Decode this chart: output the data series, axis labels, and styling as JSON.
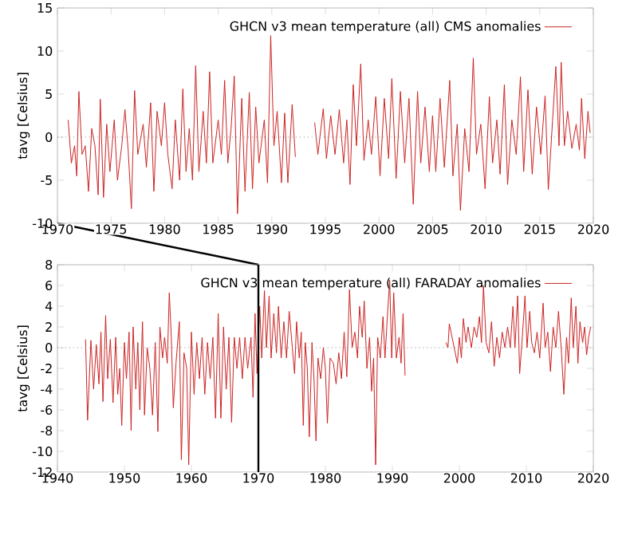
{
  "chart_data": [
    {
      "type": "line",
      "ylabel": "tavg [Celsius]",
      "legend": "top right",
      "xlim": [
        1970,
        2020
      ],
      "ylim": [
        -10,
        15
      ],
      "xticks": [
        1970,
        1975,
        1980,
        1985,
        1990,
        1995,
        2000,
        2005,
        2010,
        2015,
        2020
      ],
      "yticks": [
        -10,
        -5,
        0,
        5,
        10,
        15
      ],
      "ref_lines": [
        {
          "axis": "y",
          "value": 0,
          "color": "#888888",
          "line_style": "dotted"
        }
      ],
      "x": [
        1971.0,
        1971.3,
        1971.6,
        1971.8,
        1972.0,
        1972.3,
        1972.6,
        1972.9,
        1973.2,
        1973.5,
        1973.8,
        1974.0,
        1974.3,
        1974.6,
        1974.9,
        1975.3,
        1975.6,
        1976.0,
        1976.3,
        1976.6,
        1976.9,
        1977.2,
        1977.5,
        1978.0,
        1978.3,
        1978.7,
        1979.0,
        1979.3,
        1979.7,
        1980.0,
        1980.3,
        1980.7,
        1981.0,
        1981.4,
        1981.7,
        1982.0,
        1982.3,
        1982.6,
        1982.9,
        1983.2,
        1983.6,
        1983.9,
        1984.2,
        1984.5,
        1985.0,
        1985.3,
        1985.6,
        1985.9,
        1986.2,
        1986.5,
        1986.8,
        1987.2,
        1987.5,
        1987.9,
        1988.2,
        1988.5,
        1988.8,
        1989.3,
        1989.6,
        1989.9,
        1990.2,
        1990.5,
        1990.9,
        1991.2,
        1991.5,
        1991.9,
        1992.2,
        1993.0,
        1994.0,
        1994.3,
        1994.8,
        1995.1,
        1995.5,
        1995.9,
        1996.3,
        1996.7,
        1997.0,
        1997.3,
        1997.6,
        1997.9,
        1998.3,
        1998.6,
        1999.0,
        1999.3,
        1999.7,
        2000.1,
        2000.5,
        2000.9,
        2001.2,
        2001.6,
        2002.0,
        2002.4,
        2002.8,
        2003.2,
        2003.6,
        2003.9,
        2004.3,
        2004.7,
        2005.0,
        2005.3,
        2005.7,
        2006.1,
        2006.6,
        2006.9,
        2007.3,
        2007.6,
        2008.0,
        2008.4,
        2008.8,
        2009.1,
        2009.5,
        2009.9,
        2010.3,
        2010.6,
        2011.0,
        2011.3,
        2011.7,
        2012.0,
        2012.4,
        2012.8,
        2013.2,
        2013.5,
        2013.9,
        2014.3,
        2014.7,
        2015.1,
        2015.5,
        2015.8,
        2016.2,
        2016.5,
        2016.8,
        2017.0,
        2017.3,
        2017.6,
        2018.0,
        2018.4,
        2018.7,
        2018.9,
        2019.2,
        2019.5,
        2019.7
      ],
      "series": [
        {
          "name": "GHCN v3 mean temperature (all) CMS anomalies",
          "color": "#cc2222",
          "values": [
            2,
            -3,
            -1,
            -4.5,
            5.3,
            -2,
            -1,
            -6.3,
            1,
            -1,
            -6.7,
            4.4,
            -7,
            1.5,
            -4,
            2,
            -5,
            -1,
            3.2,
            -1.5,
            -8.3,
            5.4,
            -2,
            1.5,
            -3.5,
            4,
            -6.3,
            3,
            -1,
            4,
            -2,
            -6,
            2,
            -5,
            5.6,
            -4,
            1,
            -5,
            8.3,
            -4,
            3,
            -3,
            7.6,
            -3,
            2,
            -2,
            6.6,
            -3,
            1,
            7.1,
            -8.9,
            4.5,
            -6.3,
            5.2,
            -6,
            3.5,
            -3,
            2,
            -5.3,
            11.8,
            -1,
            3,
            -5.3,
            2.8,
            -5.3,
            3.8,
            -2.3,
            null,
            1.7,
            -2,
            3.3,
            -2.5,
            2.5,
            -2,
            3.2,
            -3,
            2,
            -5.5,
            6.1,
            -1,
            8.5,
            -2.7,
            2,
            -2,
            4.7,
            -4.5,
            4.5,
            -2.5,
            6.8,
            -4.8,
            5.3,
            -3,
            4.5,
            -7.8,
            5.3,
            -3,
            3.5,
            -4,
            2.5,
            -4,
            4.5,
            -3.5,
            6.6,
            -4.5,
            1.5,
            -8.5,
            1,
            -4,
            9.2,
            -2,
            1.5,
            -6,
            4.7,
            -3,
            2,
            -4.3,
            6.1,
            -5.5,
            2,
            -2,
            7,
            -4,
            5.5,
            -4.3,
            3.5,
            -2,
            4.8,
            -6.1,
            2,
            8.2,
            -1,
            8.7,
            -1,
            3,
            -1.3,
            1.5,
            -1.5,
            4.5,
            -2.5,
            3,
            0.5
          ]
        }
      ]
    },
    {
      "type": "line",
      "ylabel": "tavg [Celsius]",
      "legend": "top right",
      "xlim": [
        1940,
        2020
      ],
      "ylim": [
        -12,
        8
      ],
      "xticks": [
        1940,
        1950,
        1960,
        1970,
        1980,
        1990,
        2000,
        2010,
        2020
      ],
      "yticks": [
        -12,
        -10,
        -8,
        -6,
        -4,
        -2,
        0,
        2,
        4,
        6,
        8
      ],
      "ref_lines": [
        {
          "axis": "y",
          "value": 0,
          "color": "#888888",
          "line_style": "dotted"
        },
        {
          "axis": "x",
          "value": 1970,
          "color": "#000000",
          "line_style": "solid"
        }
      ],
      "x": [
        1944.2,
        1944.5,
        1945.0,
        1945.4,
        1945.8,
        1946.2,
        1946.5,
        1946.8,
        1947.2,
        1947.5,
        1947.9,
        1948.3,
        1948.7,
        1949.0,
        1949.3,
        1949.6,
        1950.0,
        1950.3,
        1950.7,
        1951.0,
        1951.3,
        1951.7,
        1952.0,
        1952.3,
        1952.7,
        1953.0,
        1953.4,
        1953.8,
        1954.2,
        1954.6,
        1955.0,
        1955.3,
        1955.7,
        1956.0,
        1956.4,
        1956.7,
        1957.0,
        1957.3,
        1957.7,
        1958.2,
        1958.5,
        1958.9,
        1959.3,
        1959.6,
        1960.0,
        1960.4,
        1960.8,
        1961.2,
        1961.6,
        1962.0,
        1962.4,
        1962.8,
        1963.2,
        1963.6,
        1964.0,
        1964.4,
        1964.8,
        1965.2,
        1965.6,
        1966.0,
        1966.4,
        1966.8,
        1967.2,
        1967.6,
        1968.0,
        1968.4,
        1968.9,
        1969.2,
        1969.5,
        1969.8,
        1970.2,
        1970.5,
        1970.9,
        1971.2,
        1971.6,
        1971.9,
        1972.3,
        1972.7,
        1973.0,
        1973.4,
        1973.8,
        1974.2,
        1974.6,
        1975.0,
        1975.4,
        1975.7,
        1976.1,
        1976.4,
        1976.7,
        1977.0,
        1977.3,
        1977.6,
        1978.0,
        1978.3,
        1978.6,
        1978.9,
        1979.3,
        1979.7,
        1980.0,
        1980.3,
        1980.7,
        1981.2,
        1981.6,
        1982.0,
        1982.4,
        1982.8,
        1983.2,
        1983.6,
        1984.0,
        1984.4,
        1984.8,
        1985.1,
        1985.5,
        1985.8,
        1986.2,
        1986.6,
        1986.9,
        1987.2,
        1987.5,
        1987.8,
        1988.2,
        1988.6,
        1988.9,
        1989.3,
        1989.6,
        1989.9,
        1990.2,
        1990.6,
        1991.0,
        1991.3,
        1991.6,
        1991.9,
        1995.0,
        1998.0,
        1998.3,
        1998.5,
        1999.7,
        2000.0,
        2000.3,
        2000.6,
        2001.0,
        2001.3,
        2001.8,
        2002.2,
        2002.6,
        2003.0,
        2003.3,
        2003.6,
        2004.0,
        2004.4,
        2004.8,
        2005.2,
        2005.6,
        2006.0,
        2006.4,
        2006.8,
        2007.2,
        2007.6,
        2008.0,
        2008.3,
        2008.7,
        2009.0,
        2009.4,
        2009.8,
        2010.1,
        2010.5,
        2010.8,
        2011.2,
        2011.6,
        2012.0,
        2012.5,
        2012.8,
        2013.2,
        2013.6,
        2014.0,
        2014.4,
        2014.8,
        2015.2,
        2015.6,
        2016.0,
        2016.3,
        2016.7,
        2017.0,
        2017.4,
        2017.7,
        2018.0,
        2018.4,
        2018.7,
        2019.0,
        2019.3,
        2019.6
      ],
      "series": [
        {
          "name": "GHCN v3 mean temperature (all) FARADAY anomalies",
          "color": "#cc2222",
          "values": [
            0.8,
            -7,
            0.7,
            -4,
            0.3,
            -3.5,
            1.5,
            -5.2,
            3.1,
            -3,
            0.8,
            -5.3,
            1,
            -4.5,
            -2,
            -7.5,
            0.5,
            -3,
            1.5,
            -8,
            2,
            -4,
            0.5,
            -6,
            2.5,
            -6.5,
            0,
            -2,
            -6.5,
            0.5,
            -8.1,
            2,
            -1,
            1,
            -1.5,
            5.3,
            1,
            -5.8,
            -1.5,
            2.5,
            -10.8,
            -0.5,
            -2,
            -11.3,
            1.5,
            -4.5,
            0.5,
            -3,
            1,
            -4.5,
            0.5,
            -3,
            1,
            -6.8,
            3.3,
            -6.8,
            2,
            -4,
            1,
            -7.2,
            1,
            -2,
            1,
            -3,
            1,
            -2,
            1,
            -4.8,
            3.3,
            -2.5,
            4,
            -1,
            5.5,
            0,
            5,
            -1,
            3.3,
            -0.5,
            4,
            -1,
            2.5,
            -1,
            3.5,
            0.5,
            -2.5,
            2.5,
            -1,
            1.5,
            -7.5,
            0.5,
            -2,
            -8.6,
            0.5,
            -3,
            -9,
            -1,
            -3,
            0,
            -2,
            -7.3,
            -1,
            -1.5,
            -3.5,
            -0.5,
            -3,
            1.5,
            -2.8,
            5.6,
            0,
            1.5,
            -1,
            4,
            1,
            4.5,
            -2,
            1,
            -4.2,
            -1,
            -11.3,
            1,
            -1,
            3,
            -1,
            3.5,
            6.5,
            -1,
            5.3,
            -1,
            1,
            -1.5,
            3.3,
            -2.7,
            null,
            0.5,
            0,
            2.3,
            -1.5,
            1,
            -1,
            2.8,
            0.5,
            2,
            0,
            2,
            1,
            3,
            0.5,
            6,
            0.5,
            -0.5,
            2.5,
            -1.8,
            1,
            -1,
            1.5,
            0,
            2,
            0,
            4,
            0,
            5,
            -2.5,
            1,
            5,
            0,
            3.5,
            0.5,
            -0.5,
            1.5,
            -1,
            4.3,
            0,
            1.5,
            -2.3,
            2,
            0,
            3.5,
            0,
            -4.5,
            1,
            -1.5,
            4.8,
            0,
            4,
            -1.5,
            2.5,
            0.5,
            2,
            -0.7,
            1,
            2
          ]
        }
      ]
    }
  ]
}
